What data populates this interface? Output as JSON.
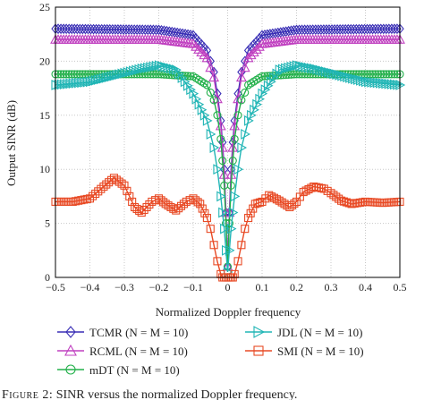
{
  "caption": {
    "label": "Figure 2:",
    "text": "SINR versus the normalized Doppler frequency."
  },
  "chart_data": {
    "type": "line",
    "xlabel": "Normalized Doppler frequency",
    "ylabel": "Output SINR (dB)",
    "xlim": [
      -0.5,
      0.5
    ],
    "ylim": [
      0,
      25
    ],
    "xticks": [
      "−0.5",
      "−0.4",
      "−0.3",
      "−0.2",
      "−0.1",
      "0",
      "0.1",
      "0.2",
      "0.3",
      "0.4",
      "0.5"
    ],
    "yticks": [
      "0",
      "5",
      "10",
      "15",
      "20",
      "25"
    ],
    "grid": true,
    "legend_position": "bottom",
    "series": [
      {
        "name": "TCMR (N = M = 10)",
        "color": "#3a2fb5",
        "marker": "diamond",
        "x": [
          -0.5,
          -0.2,
          -0.1,
          -0.06,
          -0.04,
          -0.03,
          -0.02,
          -0.015,
          -0.01,
          -0.005,
          0,
          0.005,
          0.01,
          0.015,
          0.02,
          0.03,
          0.04,
          0.06,
          0.1,
          0.2,
          0.5
        ],
        "y": [
          23.0,
          22.9,
          22.4,
          21.0,
          19.0,
          17.0,
          14.5,
          12.5,
          10.0,
          6.0,
          1.0,
          6.0,
          10.0,
          12.5,
          14.5,
          17.0,
          19.0,
          21.0,
          22.4,
          22.9,
          23.0
        ]
      },
      {
        "name": "RCML (N = M = 10)",
        "color": "#c040c0",
        "marker": "triangle",
        "x": [
          -0.5,
          -0.2,
          -0.1,
          -0.06,
          -0.04,
          -0.03,
          -0.02,
          -0.015,
          -0.01,
          -0.005,
          0,
          0.005,
          0.01,
          0.015,
          0.02,
          0.03,
          0.04,
          0.06,
          0.1,
          0.2,
          0.5
        ],
        "y": [
          22.0,
          22.0,
          21.6,
          20.3,
          18.5,
          16.5,
          14.0,
          12.0,
          9.5,
          6.0,
          1.0,
          6.0,
          9.5,
          12.0,
          14.0,
          16.5,
          18.5,
          20.3,
          21.6,
          22.0,
          22.0
        ]
      },
      {
        "name": "mDT (N = M = 10)",
        "color": "#22b04a",
        "marker": "circle",
        "x": [
          -0.5,
          -0.2,
          -0.1,
          -0.06,
          -0.04,
          -0.03,
          -0.02,
          -0.015,
          -0.01,
          -0.005,
          0,
          0.005,
          0.01,
          0.015,
          0.02,
          0.03,
          0.04,
          0.06,
          0.1,
          0.2,
          0.5
        ],
        "y": [
          18.8,
          18.8,
          18.6,
          17.8,
          16.4,
          15.0,
          12.8,
          10.8,
          8.5,
          5.0,
          1.0,
          5.0,
          8.5,
          10.8,
          12.8,
          15.0,
          16.4,
          17.8,
          18.6,
          18.8,
          18.8
        ]
      },
      {
        "name": "JDL (N = M = 10)",
        "color": "#20b5b5",
        "marker": "right-triangle",
        "x": [
          -0.5,
          -0.4,
          -0.3,
          -0.25,
          -0.2,
          -0.15,
          -0.1,
          -0.06,
          -0.04,
          -0.03,
          -0.02,
          -0.015,
          -0.01,
          -0.005,
          0,
          0.005,
          0.01,
          0.015,
          0.02,
          0.03,
          0.04,
          0.06,
          0.1,
          0.15,
          0.2,
          0.25,
          0.3,
          0.4,
          0.5
        ],
        "y": [
          17.8,
          18.1,
          18.9,
          19.3,
          19.6,
          19.2,
          17.0,
          14.5,
          12.0,
          10.0,
          7.5,
          6.0,
          4.5,
          2.5,
          0.5,
          2.5,
          4.5,
          6.0,
          7.5,
          10.0,
          12.0,
          14.5,
          17.0,
          19.2,
          19.6,
          19.3,
          18.9,
          18.1,
          17.8
        ]
      },
      {
        "name": "SMI (N = M = 10)",
        "color": "#e84a25",
        "marker": "square",
        "x": [
          -0.5,
          -0.45,
          -0.4,
          -0.36,
          -0.33,
          -0.3,
          -0.27,
          -0.25,
          -0.22,
          -0.2,
          -0.18,
          -0.15,
          -0.12,
          -0.1,
          -0.08,
          -0.06,
          -0.05,
          -0.04,
          -0.03,
          -0.02,
          -0.015,
          -0.01,
          -0.005,
          0,
          0.005,
          0.01,
          0.015,
          0.02,
          0.03,
          0.04,
          0.05,
          0.06,
          0.08,
          0.1,
          0.12,
          0.15,
          0.18,
          0.2,
          0.22,
          0.25,
          0.28,
          0.3,
          0.33,
          0.36,
          0.4,
          0.45,
          0.5
        ],
        "y": [
          7.0,
          7.0,
          7.3,
          8.4,
          9.2,
          8.5,
          6.5,
          6.0,
          7.0,
          7.3,
          6.8,
          6.2,
          7.0,
          7.3,
          6.8,
          5.5,
          4.5,
          3.0,
          1.5,
          0.3,
          0.0,
          0.0,
          0.0,
          0.0,
          0.0,
          0.0,
          0.0,
          0.3,
          1.5,
          3.0,
          4.5,
          5.5,
          6.8,
          7.0,
          7.6,
          7.1,
          6.5,
          7.0,
          7.9,
          8.4,
          8.2,
          7.8,
          7.1,
          6.8,
          7.0,
          6.9,
          7.0
        ]
      }
    ]
  }
}
